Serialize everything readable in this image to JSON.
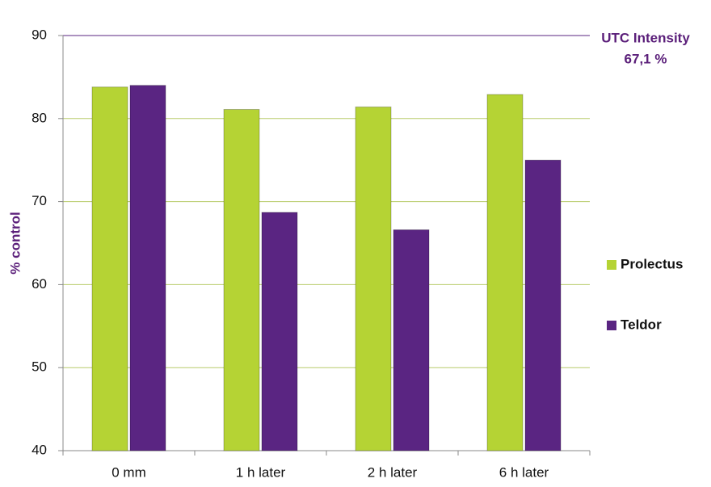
{
  "chart_data": {
    "type": "bar",
    "y_label": "% control",
    "annotation": [
      "UTC Intensity",
      "67,1 %"
    ],
    "categories": [
      "0 mm",
      "1 h later",
      "2 h later",
      "6 h later"
    ],
    "series": [
      {
        "name": "Prolectus",
        "color": "#b5d334",
        "values": [
          83.8,
          81.1,
          81.4,
          82.9
        ]
      },
      {
        "name": "Teldor",
        "color": "#5a2582",
        "values": [
          84.0,
          68.7,
          66.6,
          75.0
        ]
      }
    ],
    "ylim": [
      40,
      90
    ],
    "yticks": [
      40,
      50,
      60,
      70,
      80,
      90
    ],
    "grid": true,
    "legend": "right"
  }
}
